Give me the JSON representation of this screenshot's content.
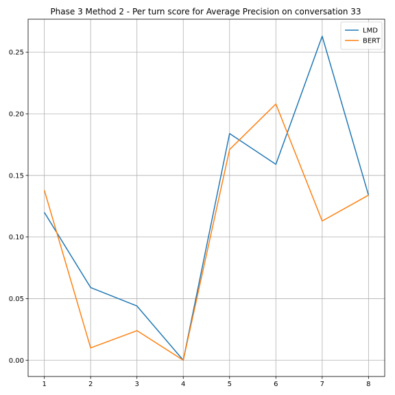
{
  "chart_data": {
    "type": "line",
    "title": "Phase 3 Method 2 - Per turn score for Average Precision on conversation 33",
    "xlabel": "",
    "ylabel": "",
    "x": [
      1,
      2,
      3,
      4,
      5,
      6,
      7,
      8
    ],
    "xticks": [
      "1",
      "2",
      "3",
      "4",
      "5",
      "6",
      "7",
      "8"
    ],
    "yticks": [
      "0.00",
      "0.05",
      "0.10",
      "0.15",
      "0.20",
      "0.25"
    ],
    "xlim": [
      0.65,
      8.35
    ],
    "ylim": [
      -0.0132,
      0.2768
    ],
    "grid": true,
    "legend_position": "top-right",
    "series": [
      {
        "name": "LMD",
        "color": "#1f77b4",
        "values": [
          0.12,
          0.059,
          0.044,
          0.0,
          0.184,
          0.159,
          0.263,
          0.134
        ]
      },
      {
        "name": "BERT",
        "color": "#ff7f0e",
        "values": [
          0.138,
          0.01,
          0.024,
          0.0,
          0.171,
          0.208,
          0.113,
          0.134
        ]
      }
    ]
  }
}
